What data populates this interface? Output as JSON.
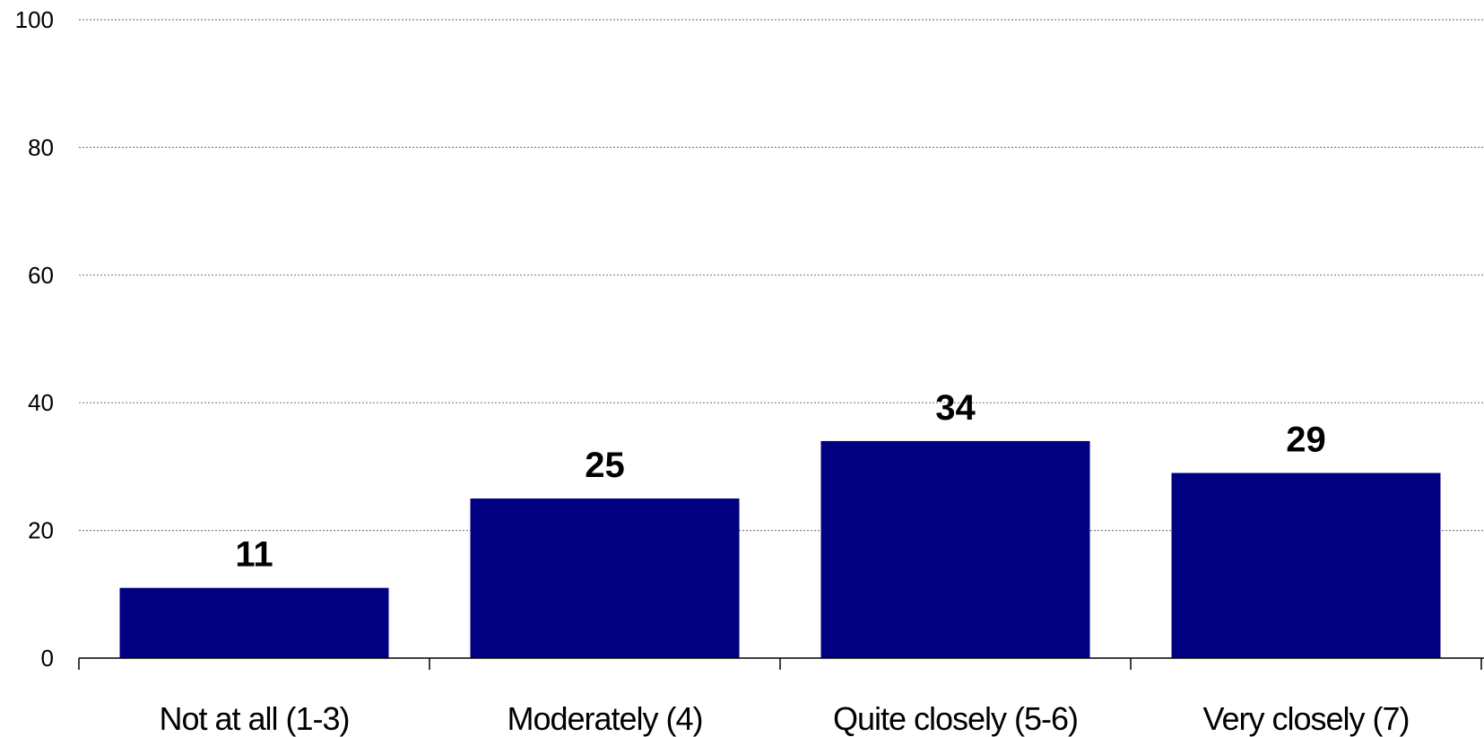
{
  "chart_data": {
    "type": "bar",
    "title": "",
    "xlabel": "",
    "ylabel": "",
    "categories": [
      "Not at all (1-3)",
      "Moderately (4)",
      "Quite closely (5-6)",
      "Very closely (7)"
    ],
    "values": [
      11,
      25,
      34,
      29
    ],
    "data_labels": [
      "11",
      "25",
      "34",
      "29"
    ],
    "ylim": [
      0,
      100
    ],
    "yticks": [
      0,
      20,
      40,
      60,
      80,
      100
    ],
    "ytick_labels": [
      "0",
      "20",
      "40",
      "60",
      "80",
      "100"
    ],
    "grid": "horizontal dotted",
    "legend": "none",
    "colors": {
      "bar": "#000080",
      "grid": "#808080",
      "axis": "#000000"
    }
  }
}
